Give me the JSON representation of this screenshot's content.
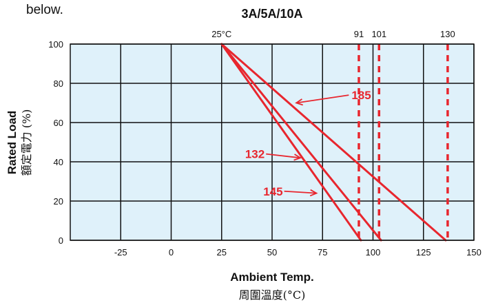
{
  "page_snippet": "below.",
  "chart_data": {
    "type": "line",
    "title": "3A/5A/10A",
    "xlabel": "Ambient Temp.",
    "xlabel_cn": "周圍溫度(°C)",
    "ylabel": "Rated Load",
    "ylabel_cn": "額定電力 (%)",
    "xlim": [
      -50,
      150
    ],
    "ylim": [
      0,
      100
    ],
    "x_ticks": [
      "-25",
      "0",
      "25",
      "50",
      "75",
      "100",
      "125",
      "150"
    ],
    "y_ticks": [
      "0",
      "20",
      "40",
      "60",
      "80",
      "100"
    ],
    "grid": true,
    "background_color": "#dff1fa",
    "series_color": "#e8262e",
    "series": [
      {
        "name": "185",
        "x": [
          25,
          136
        ],
        "y": [
          100,
          0
        ]
      },
      {
        "name": "132",
        "x": [
          25,
          94
        ],
        "y": [
          100,
          0
        ]
      },
      {
        "name": "145",
        "x": [
          25,
          104
        ],
        "y": [
          100,
          0
        ]
      }
    ],
    "top_markers": [
      {
        "label": "25°C",
        "x": 25,
        "dashed": false
      },
      {
        "label": "91",
        "x": 93,
        "dashed": true
      },
      {
        "label": "101",
        "x": 103,
        "dashed": true
      },
      {
        "label": "130",
        "x": 137,
        "dashed": true
      }
    ],
    "annotations": [
      {
        "text": "185",
        "x": 88,
        "y": 74,
        "arrow_to_x": 62,
        "arrow_to_y": 70
      },
      {
        "text": "132",
        "x": 47,
        "y": 44,
        "arrow_to_x": 64,
        "arrow_to_y": 42
      },
      {
        "text": "145",
        "x": 56,
        "y": 25,
        "arrow_to_x": 72,
        "arrow_to_y": 24
      }
    ]
  }
}
